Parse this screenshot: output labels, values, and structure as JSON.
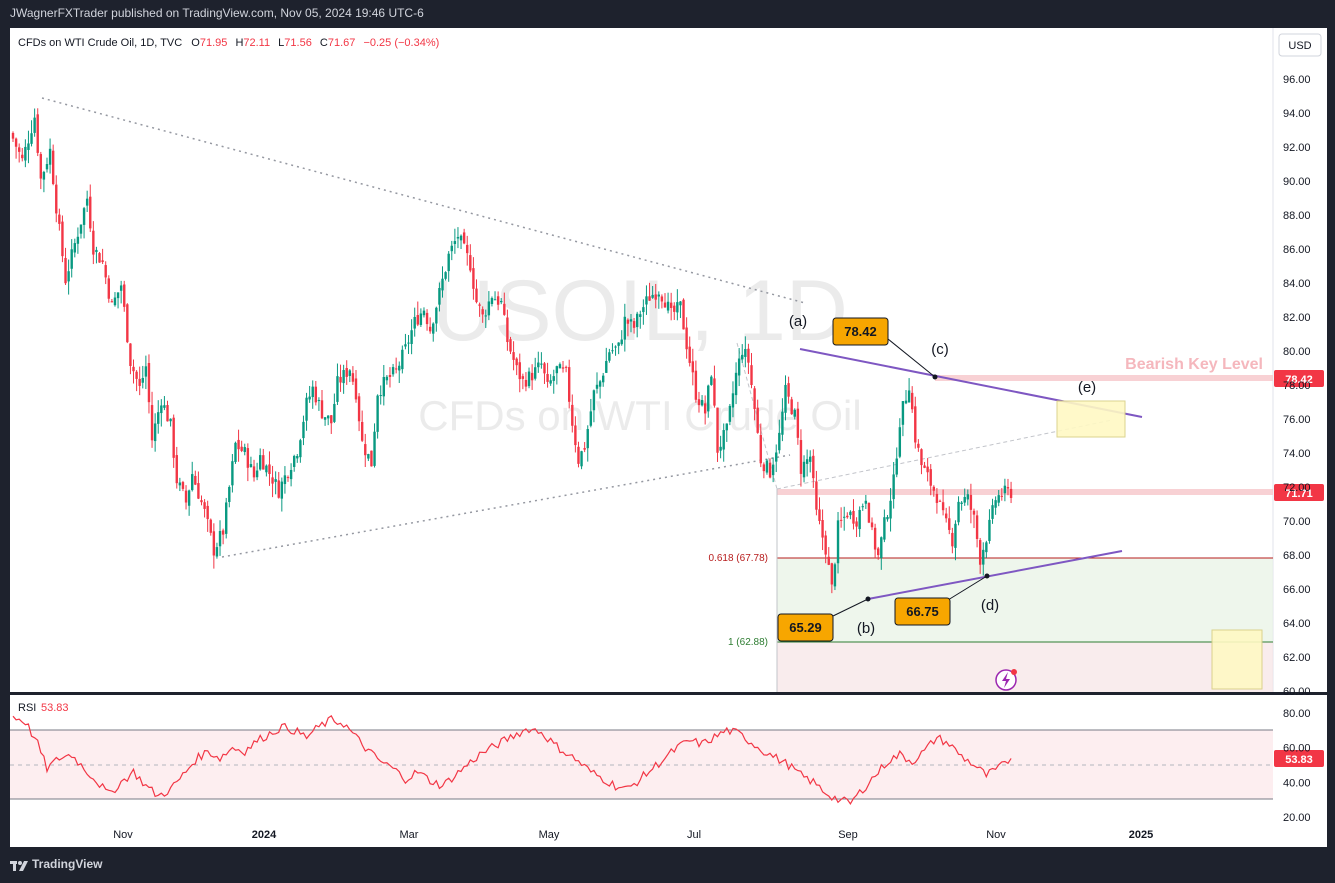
{
  "header": {
    "publisher": "JWagnerFXTrader published on TradingView.com, Nov 05, 2024 19:46 UTC-6"
  },
  "footer": {
    "brand": "TradingView"
  },
  "legend": {
    "symbol": "CFDs on WTI Crude Oil, 1D, TVC",
    "o_label": "O",
    "o": "71.95",
    "h_label": "H",
    "h": "72.11",
    "l_label": "L",
    "l": "71.56",
    "c_label": "C",
    "c": "71.67",
    "change": "−0.25 (−0.34%)"
  },
  "watermark": {
    "symbol": "USOIL, 1D",
    "name": "CFDs on WTI Crude Oil"
  },
  "currency": "USD",
  "colors": {
    "up": "#089981",
    "down": "#f23645",
    "background": "#ffffff",
    "chrome": "#1e222d",
    "rsi": "#f23645",
    "wedge": "#7e57c2",
    "callout": "#f7a600"
  },
  "annotations": {
    "bearish_key_level": "Bearish Key Level",
    "level_high": "78.42",
    "last_price": "71.71",
    "fib_0618": "0.618 (67.78)",
    "fib_1": "1 (62.88)",
    "wave_a": "(a)",
    "wave_b": "(b)",
    "wave_c": "(c)",
    "wave_d": "(d)",
    "wave_e": "(e)",
    "callout_c": "78.42",
    "callout_b": "65.29",
    "callout_d": "66.75"
  },
  "rsi": {
    "label": "RSI",
    "value": "53.83",
    "last": "53.83"
  },
  "chart_data": {
    "type": "candlestick",
    "title": "CFDs on WTI Crude Oil, 1D, TVC",
    "price_axis": [
      "96.00",
      "94.00",
      "92.00",
      "90.00",
      "88.00",
      "86.00",
      "84.00",
      "82.00",
      "80.00",
      "78.00",
      "76.00",
      "74.00",
      "72.00",
      "70.00",
      "68.00",
      "66.00",
      "64.00",
      "62.00",
      "60.00"
    ],
    "ylim": [
      60,
      97
    ],
    "rsi_axis": [
      "80.00",
      "60.00",
      "40.00",
      "20.00"
    ],
    "rsi_ylim": [
      20,
      80
    ],
    "time_axis": [
      "Nov",
      "2024",
      "Mar",
      "May",
      "Jul",
      "Sep",
      "Nov",
      "2025"
    ],
    "price_path": [
      [
        0,
        92.5
      ],
      [
        3,
        91.2
      ],
      [
        7,
        93.8
      ],
      [
        9,
        90.1
      ],
      [
        12,
        91.8
      ],
      [
        14,
        88.5
      ],
      [
        17,
        84.2
      ],
      [
        20,
        86.3
      ],
      [
        24,
        89.0
      ],
      [
        26,
        86.1
      ],
      [
        29,
        85.2
      ],
      [
        32,
        82.6
      ],
      [
        35,
        83.9
      ],
      [
        38,
        79.4
      ],
      [
        41,
        77.8
      ],
      [
        43,
        79.1
      ],
      [
        45,
        74.8
      ],
      [
        48,
        77.2
      ],
      [
        51,
        75.6
      ],
      [
        53,
        72.4
      ],
      [
        56,
        71.1
      ],
      [
        58,
        72.8
      ],
      [
        62,
        70.5
      ],
      [
        65,
        68.3
      ],
      [
        68,
        69.4
      ],
      [
        72,
        74.5
      ],
      [
        75,
        74.0
      ],
      [
        78,
        72.6
      ],
      [
        80,
        73.8
      ],
      [
        84,
        72.5
      ],
      [
        86,
        71.8
      ],
      [
        89,
        73.0
      ],
      [
        92,
        74.2
      ],
      [
        95,
        76.9
      ],
      [
        97,
        77.8
      ],
      [
        100,
        76.4
      ],
      [
        103,
        75.8
      ],
      [
        105,
        78.1
      ],
      [
        109,
        79.0
      ],
      [
        111,
        77.6
      ],
      [
        113,
        74.6
      ],
      [
        116,
        73.4
      ],
      [
        118,
        77.6
      ],
      [
        121,
        78.3
      ],
      [
        124,
        78.8
      ],
      [
        127,
        80.1
      ],
      [
        130,
        81.7
      ],
      [
        133,
        82.5
      ],
      [
        135,
        81.3
      ],
      [
        138,
        83.4
      ],
      [
        141,
        85.6
      ],
      [
        144,
        86.8
      ],
      [
        146,
        85.9
      ],
      [
        148,
        85.1
      ],
      [
        150,
        82.9
      ],
      [
        152,
        82.0
      ],
      [
        155,
        83.3
      ],
      [
        158,
        82.8
      ],
      [
        160,
        80.6
      ],
      [
        163,
        78.9
      ],
      [
        165,
        78.2
      ],
      [
        168,
        78.6
      ],
      [
        171,
        79.2
      ],
      [
        173,
        77.8
      ],
      [
        176,
        78.9
      ],
      [
        179,
        78.6
      ],
      [
        181,
        75.8
      ],
      [
        183,
        73.6
      ],
      [
        185,
        74.4
      ],
      [
        188,
        77.5
      ],
      [
        190,
        78.2
      ],
      [
        193,
        80.0
      ],
      [
        196,
        80.2
      ],
      [
        198,
        81.8
      ],
      [
        201,
        81.4
      ],
      [
        203,
        82.3
      ],
      [
        206,
        83.2
      ],
      [
        209,
        83.6
      ],
      [
        211,
        83.0
      ],
      [
        213,
        82.1
      ],
      [
        216,
        82.6
      ],
      [
        218,
        80.4
      ],
      [
        221,
        77.5
      ],
      [
        224,
        76.4
      ],
      [
        226,
        78.8
      ],
      [
        228,
        74.2
      ],
      [
        231,
        75.3
      ],
      [
        234,
        78.6
      ],
      [
        236,
        80.1
      ],
      [
        238,
        79.4
      ],
      [
        240,
        76.6
      ],
      [
        242,
        73.6
      ],
      [
        245,
        72.9
      ],
      [
        248,
        75.0
      ],
      [
        250,
        77.6
      ],
      [
        253,
        76.2
      ],
      [
        255,
        73.1
      ],
      [
        258,
        73.8
      ],
      [
        260,
        70.4
      ],
      [
        263,
        68.4
      ],
      [
        265,
        66.0
      ],
      [
        267,
        69.6
      ],
      [
        270,
        70.5
      ],
      [
        273,
        70.1
      ],
      [
        276,
        71.5
      ],
      [
        278,
        69.2
      ],
      [
        280,
        67.9
      ],
      [
        282,
        69.8
      ],
      [
        285,
        72.3
      ],
      [
        287,
        75.9
      ],
      [
        290,
        78.1
      ],
      [
        292,
        74.9
      ],
      [
        294,
        73.3
      ],
      [
        297,
        72.2
      ],
      [
        299,
        71.5
      ],
      [
        301,
        70.2
      ],
      [
        304,
        68.9
      ],
      [
        306,
        71.2
      ],
      [
        309,
        71.3
      ],
      [
        311,
        70.1
      ],
      [
        313,
        67.8
      ],
      [
        316,
        69.7
      ],
      [
        318,
        71.3
      ],
      [
        320,
        71.6
      ],
      [
        323,
        71.7
      ]
    ],
    "rsi_path": [
      [
        0,
        78
      ],
      [
        4,
        75
      ],
      [
        8,
        62
      ],
      [
        11,
        48
      ],
      [
        15,
        54
      ],
      [
        19,
        56
      ],
      [
        23,
        48
      ],
      [
        27,
        41
      ],
      [
        31,
        33
      ],
      [
        35,
        40
      ],
      [
        39,
        46
      ],
      [
        43,
        38
      ],
      [
        47,
        32
      ],
      [
        51,
        36
      ],
      [
        55,
        44
      ],
      [
        59,
        53
      ],
      [
        63,
        58
      ],
      [
        67,
        54
      ],
      [
        71,
        60
      ],
      [
        75,
        58
      ],
      [
        79,
        64
      ],
      [
        83,
        68
      ],
      [
        87,
        72
      ],
      [
        91,
        70
      ],
      [
        95,
        66
      ],
      [
        99,
        72
      ],
      [
        103,
        76
      ],
      [
        107,
        74
      ],
      [
        111,
        66
      ],
      [
        115,
        58
      ],
      [
        119,
        52
      ],
      [
        123,
        48
      ],
      [
        127,
        42
      ],
      [
        131,
        46
      ],
      [
        135,
        41
      ],
      [
        139,
        38
      ],
      [
        143,
        44
      ],
      [
        147,
        50
      ],
      [
        151,
        56
      ],
      [
        155,
        60
      ],
      [
        159,
        64
      ],
      [
        163,
        68
      ],
      [
        167,
        71
      ],
      [
        171,
        69
      ],
      [
        175,
        62
      ],
      [
        179,
        57
      ],
      [
        183,
        52
      ],
      [
        187,
        46
      ],
      [
        191,
        42
      ],
      [
        195,
        38
      ],
      [
        199,
        36
      ],
      [
        203,
        42
      ],
      [
        207,
        48
      ],
      [
        211,
        54
      ],
      [
        215,
        60
      ],
      [
        219,
        64
      ],
      [
        223,
        62
      ],
      [
        227,
        66
      ],
      [
        231,
        70
      ],
      [
        235,
        68
      ],
      [
        239,
        63
      ],
      [
        243,
        58
      ],
      [
        247,
        54
      ],
      [
        251,
        50
      ],
      [
        255,
        44
      ],
      [
        259,
        40
      ],
      [
        263,
        34
      ],
      [
        267,
        30
      ],
      [
        271,
        28
      ],
      [
        275,
        36
      ],
      [
        279,
        44
      ],
      [
        283,
        52
      ],
      [
        287,
        56
      ],
      [
        291,
        52
      ],
      [
        295,
        58
      ],
      [
        299,
        66
      ],
      [
        303,
        62
      ],
      [
        307,
        55
      ],
      [
        311,
        50
      ],
      [
        315,
        44
      ],
      [
        319,
        48
      ],
      [
        323,
        54
      ]
    ],
    "key_points": {
      "wave_a": [
        236,
        80.2
      ],
      "wave_b": [
        265,
        65.29
      ],
      "wave_c": [
        290,
        78.42
      ],
      "wave_d": [
        313,
        66.75
      ]
    },
    "levels": {
      "bearish_key_level": 78.42,
      "last": 71.71,
      "fib_0618": 67.78,
      "fib_1": 62.88
    }
  }
}
